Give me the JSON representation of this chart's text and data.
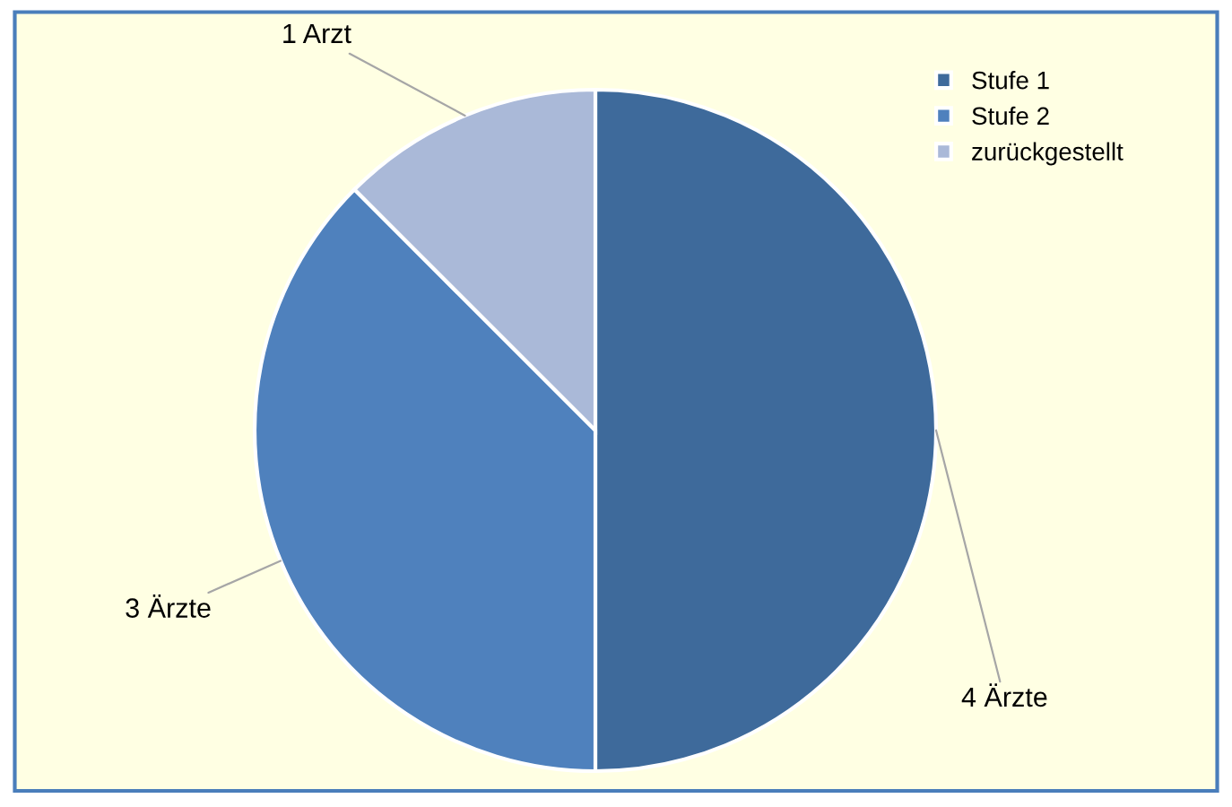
{
  "chart_data": {
    "type": "pie",
    "categories": [
      "Stufe 1",
      "Stufe 2",
      "zurückgestellt"
    ],
    "values": [
      4,
      3,
      1
    ],
    "colors": [
      "#3e6a9b",
      "#4f81bd",
      "#aab9d8"
    ],
    "value_labels": [
      "4 Ärzte",
      "3 Ärzte",
      "1 Arzt"
    ],
    "legend": "top right"
  }
}
